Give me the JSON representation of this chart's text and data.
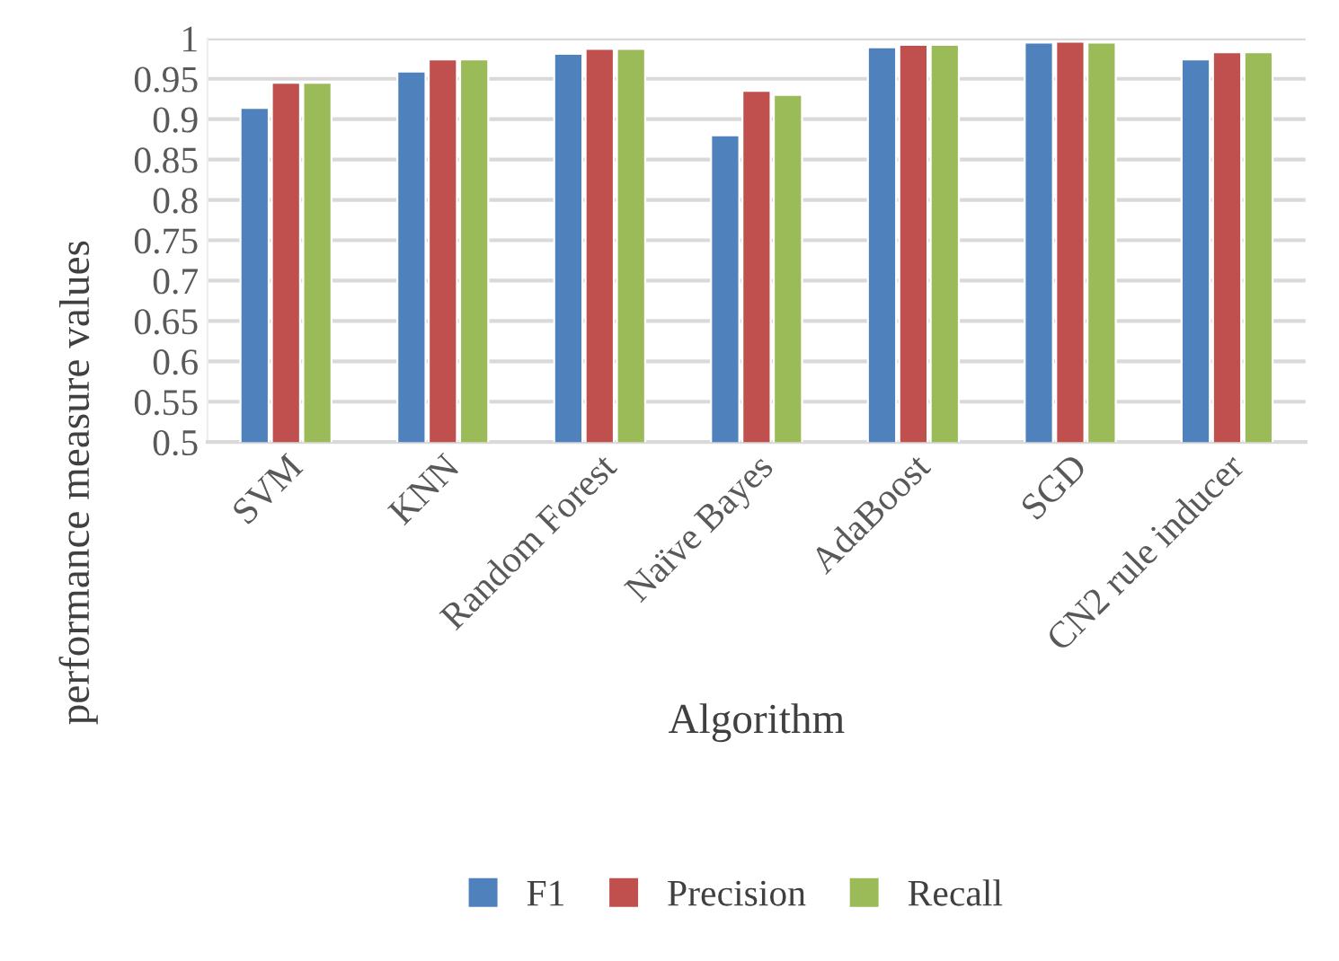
{
  "chart_data": {
    "type": "bar",
    "xlabel": "Algorithm",
    "ylabel": "performance measure values",
    "categories": [
      "SVM",
      "KNN",
      "Random Forest",
      "Naïve Bayes",
      "AdaBoost",
      "SGD",
      "CN2 rule inducer"
    ],
    "series": [
      {
        "name": "F1",
        "color": "#4f81bd",
        "values": [
          0.914,
          0.959,
          0.981,
          0.88,
          0.989,
          0.995,
          0.974
        ]
      },
      {
        "name": "Precision",
        "color": "#c0504d",
        "values": [
          0.945,
          0.974,
          0.987,
          0.935,
          0.992,
          0.996,
          0.983
        ]
      },
      {
        "name": "Recall",
        "color": "#9bbb59",
        "values": [
          0.945,
          0.974,
          0.987,
          0.93,
          0.992,
          0.995,
          0.983
        ]
      }
    ],
    "ylim": [
      0.5,
      1.0
    ],
    "yticks": [
      0.5,
      0.55,
      0.6,
      0.65,
      0.7,
      0.75,
      0.8,
      0.85,
      0.9,
      0.95,
      1
    ],
    "grid": "y",
    "legend": "bottom"
  }
}
